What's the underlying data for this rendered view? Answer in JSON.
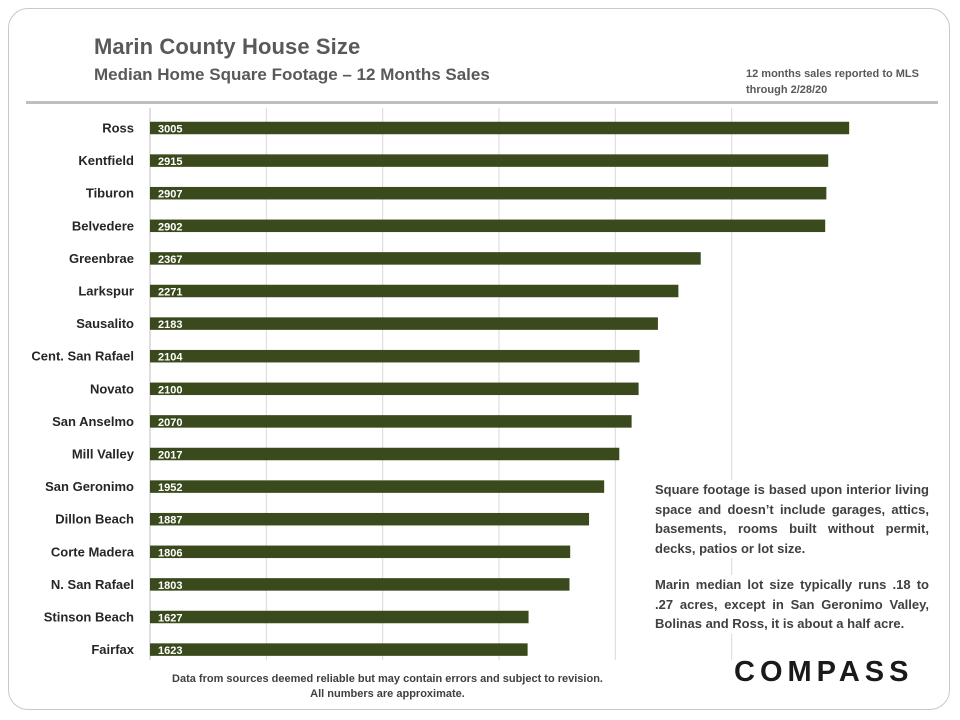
{
  "header": {
    "title": "Marin County House Size",
    "subtitle": "Median Home Square Footage – 12 Months Sales",
    "note": "12 months sales reported to MLS through 2/28/20"
  },
  "annotations": {
    "text1": "Square footage is based upon interior living space and doesn’t include garages, attics, basements, rooms built without permit, decks, patios or lot size.",
    "text2": "Marin median lot size typically runs .18 to .27 acres, except in San Geronimo Valley, Bolinas and Ross, it is about a half acre."
  },
  "footer": {
    "line1": "Data from sources deemed reliable but  may contain errors and subject to revision.",
    "line2": "All numbers are approximate."
  },
  "brand": {
    "logo": "COMPASS"
  },
  "colors": {
    "bar": "#3a4a1c",
    "grid": "#d9d9d9",
    "text": "#595959"
  },
  "chart_data": {
    "type": "bar",
    "orientation": "horizontal",
    "categories": [
      "Ross",
      "Kentfield",
      "Tiburon",
      "Belvedere",
      "Greenbrae",
      "Larkspur",
      "Sausalito",
      "Cent. San Rafael",
      "Novato",
      "San Anselmo",
      "Mill Valley",
      "San Geronimo",
      "Dillon Beach",
      "Corte Madera",
      "N. San Rafael",
      "Stinson Beach",
      "Fairfax"
    ],
    "values": [
      3005,
      2915,
      2907,
      2902,
      2367,
      2271,
      2183,
      2104,
      2100,
      2070,
      2017,
      1952,
      1887,
      1806,
      1803,
      1627,
      1623
    ],
    "xlim": [
      0,
      3000
    ],
    "gridlines": [
      500,
      1000,
      1500,
      2000,
      2500
    ],
    "grid": true,
    "data_labels": true
  }
}
